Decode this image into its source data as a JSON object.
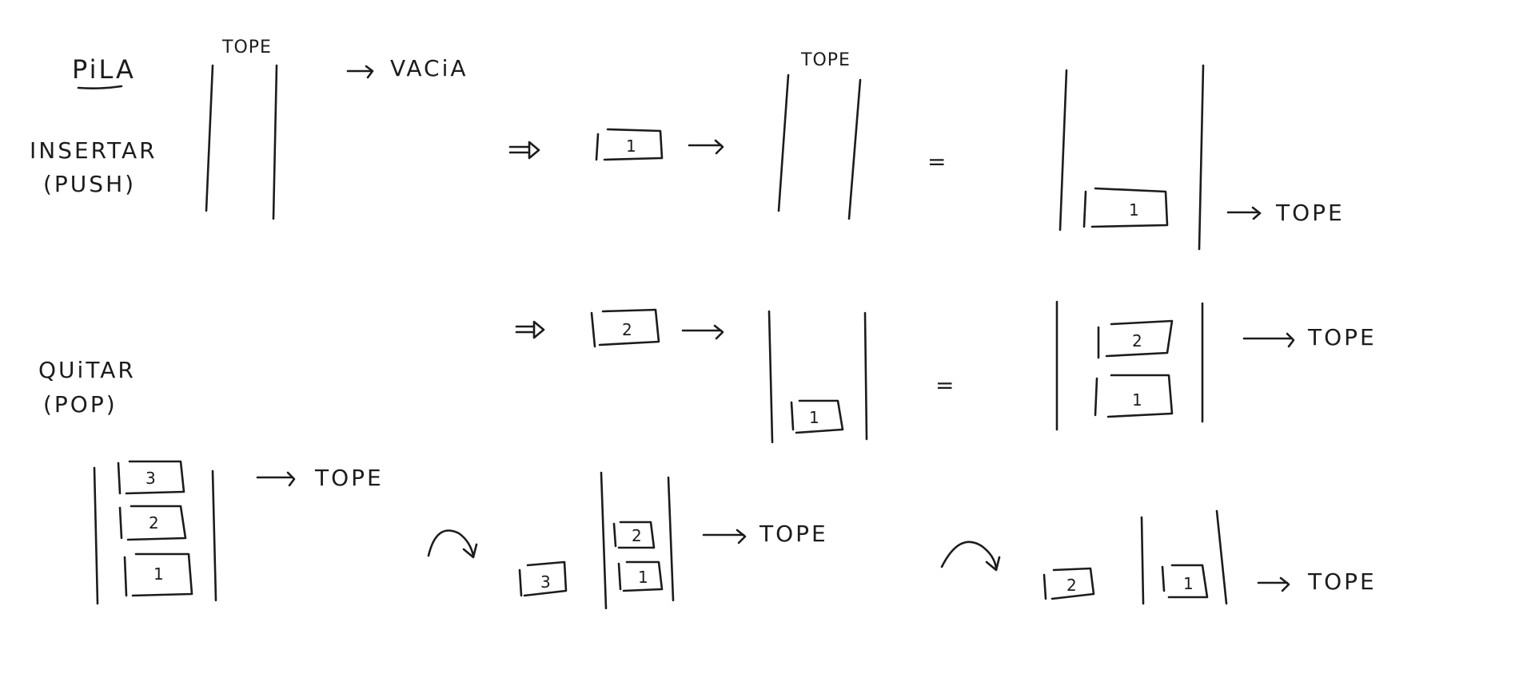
{
  "labels": {
    "title": "PiLA",
    "insert_1": "INSERTAR",
    "insert_2": "(PUSH)",
    "remove_1": "QUiTAR",
    "remove_2": "(POP)",
    "tope": "TOPE",
    "vacia": "VACiA",
    "equals": "="
  },
  "items": {
    "one": "1",
    "two": "2",
    "three": "3"
  },
  "ink_color": "#1c1c1c"
}
